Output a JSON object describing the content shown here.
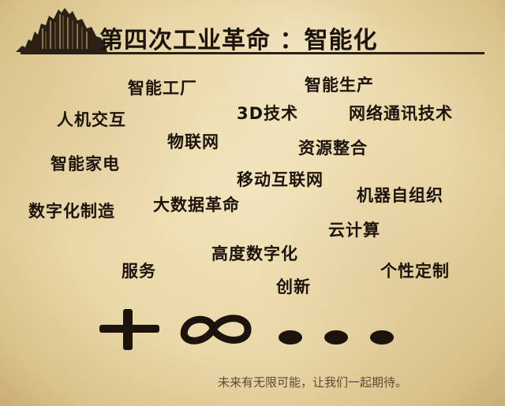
{
  "header": {
    "title": "第四次工业革命 ：智能化"
  },
  "keywords": [
    "智能工厂",
    "智能生产",
    "人机交互",
    "3D技术",
    "网络通讯技术",
    "物联网",
    "资源整合",
    "智能家电",
    "移动互联网",
    "机器自组织",
    "数字化制造",
    "大数据革命",
    "云计算",
    "高度数字化",
    "服务",
    "个性定制",
    "创新"
  ],
  "footer": {
    "text": "未来有无限可能，让我们一起期待。"
  },
  "colors": {
    "ink": "#1c140c",
    "paper": "#ead8a8",
    "footer_text": "#5a4a36"
  }
}
